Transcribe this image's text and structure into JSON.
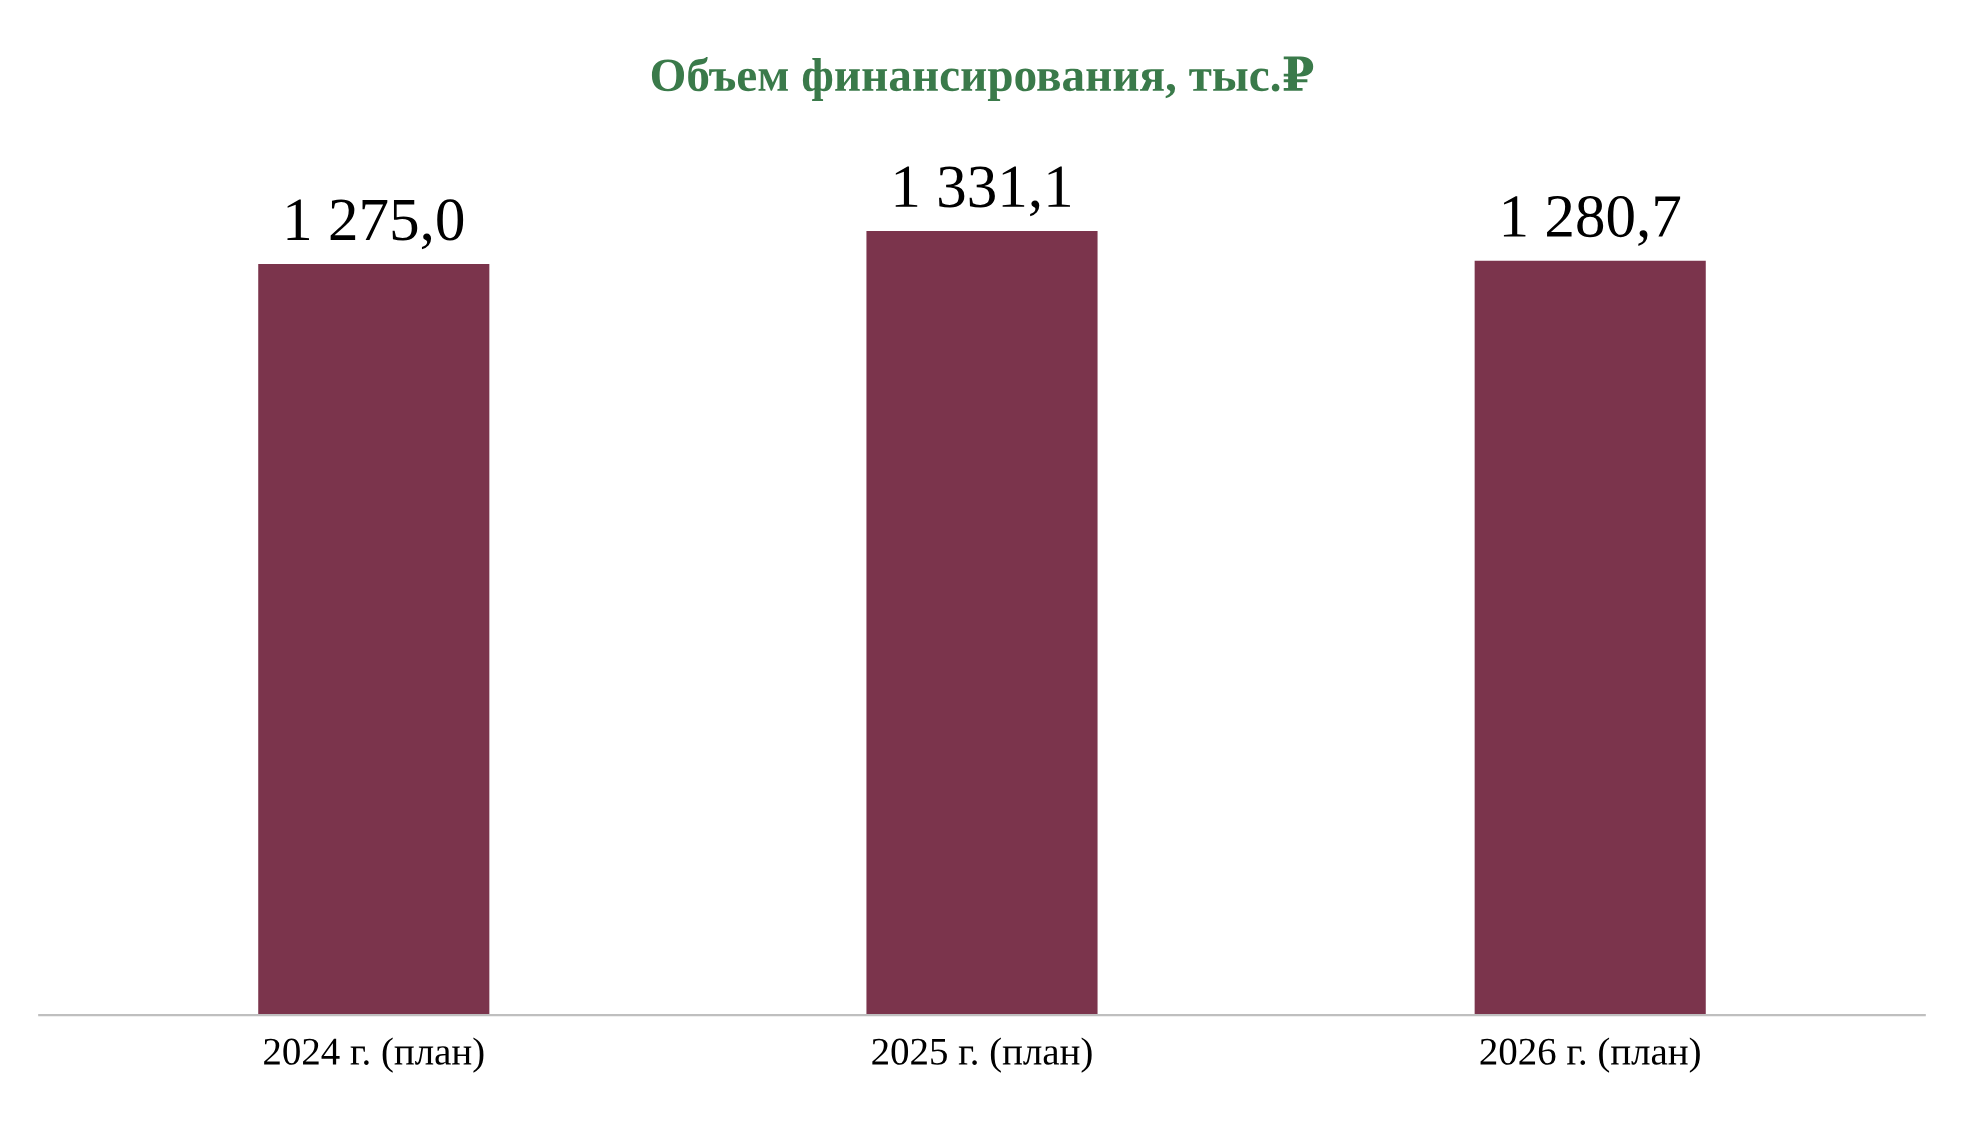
{
  "chart_data": {
    "type": "bar",
    "title": "Объем финансирования, тыс.₽",
    "categories": [
      "2024 г. (план)",
      "2025 г. (план)",
      "2026 г. (план)"
    ],
    "values": [
      1275.0,
      1331.1,
      1280.7
    ],
    "value_labels": [
      "1 275,0",
      "1 331,1",
      "1 280,7"
    ],
    "color": "#7b344c",
    "grid": false,
    "legend": false
  }
}
